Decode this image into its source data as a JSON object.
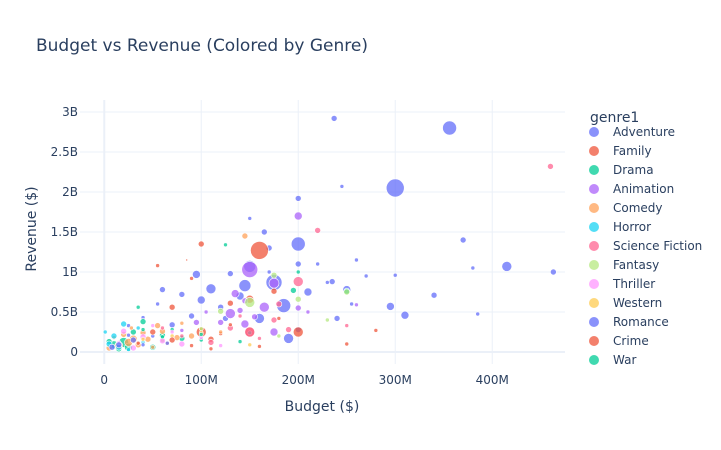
{
  "chart_data": {
    "type": "scatter",
    "title": "Budget vs Revenue (Colored by Genre)",
    "xlabel": "Budget ($)",
    "ylabel": "Revenue ($)",
    "xlim": [
      -25000000,
      475000000
    ],
    "ylim": [
      -150000000,
      3150000000
    ],
    "xticks": [
      {
        "value": 0,
        "label": "0"
      },
      {
        "value": 100000000,
        "label": "100M"
      },
      {
        "value": 200000000,
        "label": "200M"
      },
      {
        "value": 300000000,
        "label": "300M"
      },
      {
        "value": 400000000,
        "label": "400M"
      }
    ],
    "yticks": [
      {
        "value": 0,
        "label": "0"
      },
      {
        "value": 500000000,
        "label": "0.5B"
      },
      {
        "value": 1000000000,
        "label": "1B"
      },
      {
        "value": 1500000000,
        "label": "1.5B"
      },
      {
        "value": 2000000000,
        "label": "2B"
      },
      {
        "value": 2500000000,
        "label": "2.5B"
      },
      {
        "value": 3000000000,
        "label": "3B"
      }
    ],
    "grid": true,
    "legend_title": "genre1",
    "legend_position": "right",
    "marker_opacity": 0.75,
    "series": [
      {
        "name": "Adventure",
        "color": "#636efa",
        "points": [
          [
            356000000,
            2800000000,
            7
          ],
          [
            237000000,
            2920000000,
            3
          ],
          [
            300000000,
            2050000000,
            9
          ],
          [
            200000000,
            1350000000,
            7
          ],
          [
            200000000,
            1920000000,
            3
          ],
          [
            245000000,
            2070000000,
            2
          ],
          [
            260000000,
            1150000000,
            2
          ],
          [
            370000000,
            1400000000,
            3
          ],
          [
            415000000,
            1070000000,
            5
          ],
          [
            463000000,
            1000000000,
            3
          ],
          [
            380000000,
            1050000000,
            2
          ],
          [
            300000000,
            960000000,
            2
          ],
          [
            270000000,
            950000000,
            2
          ],
          [
            340000000,
            710000000,
            3
          ],
          [
            295000000,
            570000000,
            4
          ],
          [
            310000000,
            460000000,
            4
          ],
          [
            385000000,
            475000000,
            2
          ],
          [
            250000000,
            780000000,
            4
          ],
          [
            200000000,
            1100000000,
            3
          ],
          [
            150000000,
            1070000000,
            6
          ],
          [
            170000000,
            1300000000,
            3
          ],
          [
            175000000,
            870000000,
            8
          ],
          [
            185000000,
            580000000,
            7
          ],
          [
            190000000,
            170000000,
            5
          ],
          [
            145000000,
            830000000,
            6
          ],
          [
            130000000,
            980000000,
            3
          ],
          [
            110000000,
            790000000,
            5
          ],
          [
            100000000,
            650000000,
            4
          ],
          [
            95000000,
            970000000,
            4
          ],
          [
            90000000,
            450000000,
            3
          ],
          [
            80000000,
            720000000,
            3
          ],
          [
            70000000,
            340000000,
            3
          ],
          [
            60000000,
            780000000,
            3
          ],
          [
            40000000,
            430000000,
            2
          ],
          [
            25000000,
            330000000,
            2
          ],
          [
            165000000,
            1500000000,
            3
          ],
          [
            150000000,
            1670000000,
            2
          ],
          [
            210000000,
            750000000,
            4
          ],
          [
            240000000,
            420000000,
            3
          ],
          [
            160000000,
            420000000,
            5
          ],
          [
            120000000,
            560000000,
            3
          ],
          [
            200000000,
            280000000,
            3
          ],
          [
            230000000,
            870000000,
            2
          ],
          [
            235000000,
            880000000,
            3
          ],
          [
            220000000,
            1100000000,
            2
          ],
          [
            255000000,
            600000000,
            2
          ],
          [
            140000000,
            700000000,
            4
          ],
          [
            170000000,
            1000000000,
            2
          ],
          [
            125000000,
            420000000,
            3
          ],
          [
            55000000,
            600000000,
            2
          ]
        ]
      },
      {
        "name": "Family",
        "color": "#ef553b",
        "points": [
          [
            160000000,
            1270000000,
            9
          ],
          [
            100000000,
            1350000000,
            3
          ],
          [
            55000000,
            1080000000,
            2
          ],
          [
            175000000,
            760000000,
            3
          ],
          [
            150000000,
            660000000,
            4
          ],
          [
            200000000,
            250000000,
            5
          ],
          [
            150000000,
            250000000,
            5
          ],
          [
            100000000,
            250000000,
            5
          ],
          [
            130000000,
            610000000,
            3
          ],
          [
            70000000,
            560000000,
            3
          ],
          [
            110000000,
            160000000,
            3
          ],
          [
            85000000,
            1150000000,
            1
          ],
          [
            160000000,
            70000000,
            2
          ],
          [
            90000000,
            920000000,
            2
          ],
          [
            120000000,
            230000000,
            2
          ],
          [
            60000000,
            150000000,
            2
          ],
          [
            280000000,
            270000000,
            2
          ],
          [
            250000000,
            100000000,
            2
          ],
          [
            180000000,
            420000000,
            2
          ],
          [
            40000000,
            220000000,
            2
          ]
        ]
      },
      {
        "name": "Drama",
        "color": "#00cc96",
        "points": [
          [
            200000000,
            1000000000,
            2
          ],
          [
            195000000,
            770000000,
            3
          ],
          [
            250000000,
            760000000,
            3
          ],
          [
            125000000,
            1340000000,
            2
          ],
          [
            40000000,
            380000000,
            3
          ],
          [
            20000000,
            120000000,
            5
          ],
          [
            30000000,
            250000000,
            3
          ],
          [
            10000000,
            90000000,
            4
          ],
          [
            50000000,
            60000000,
            3
          ],
          [
            80000000,
            170000000,
            3
          ],
          [
            60000000,
            210000000,
            3
          ],
          [
            15000000,
            40000000,
            3
          ],
          [
            35000000,
            560000000,
            2
          ],
          [
            70000000,
            280000000,
            2
          ],
          [
            100000000,
            150000000,
            2
          ],
          [
            150000000,
            240000000,
            2
          ],
          [
            5000000,
            130000000,
            3
          ],
          [
            25000000,
            60000000,
            4
          ]
        ]
      },
      {
        "name": "Animation",
        "color": "#ab63fa",
        "points": [
          [
            200000000,
            1700000000,
            4
          ],
          [
            150000000,
            1030000000,
            8
          ],
          [
            175000000,
            860000000,
            5
          ],
          [
            165000000,
            560000000,
            5
          ],
          [
            260000000,
            590000000,
            2
          ],
          [
            130000000,
            480000000,
            5
          ],
          [
            145000000,
            350000000,
            4
          ],
          [
            135000000,
            730000000,
            4
          ],
          [
            140000000,
            520000000,
            3
          ],
          [
            95000000,
            370000000,
            3
          ],
          [
            120000000,
            370000000,
            3
          ],
          [
            175000000,
            250000000,
            4
          ],
          [
            200000000,
            550000000,
            3
          ],
          [
            155000000,
            440000000,
            3
          ],
          [
            210000000,
            500000000,
            2
          ],
          [
            145000000,
            640000000,
            3
          ],
          [
            80000000,
            270000000,
            2
          ],
          [
            105000000,
            500000000,
            2
          ]
        ]
      },
      {
        "name": "Comedy",
        "color": "#ffa15a",
        "points": [
          [
            145000000,
            1450000000,
            3
          ],
          [
            30000000,
            160000000,
            4
          ],
          [
            25000000,
            120000000,
            4
          ],
          [
            40000000,
            240000000,
            3
          ],
          [
            60000000,
            260000000,
            3
          ],
          [
            15000000,
            80000000,
            4
          ],
          [
            75000000,
            180000000,
            3
          ],
          [
            55000000,
            330000000,
            3
          ],
          [
            90000000,
            200000000,
            3
          ],
          [
            5000000,
            50000000,
            3
          ],
          [
            35000000,
            90000000,
            3
          ],
          [
            45000000,
            160000000,
            3
          ],
          [
            20000000,
            220000000,
            3
          ],
          [
            65000000,
            110000000,
            2
          ],
          [
            80000000,
            360000000,
            2
          ],
          [
            100000000,
            290000000,
            2
          ],
          [
            10000000,
            180000000,
            2
          ],
          [
            28000000,
            300000000,
            2
          ],
          [
            50000000,
            60000000,
            2
          ],
          [
            120000000,
            250000000,
            2
          ]
        ]
      },
      {
        "name": "Horror",
        "color": "#19d3f3",
        "points": [
          [
            20000000,
            350000000,
            3
          ],
          [
            5000000,
            100000000,
            3
          ],
          [
            10000000,
            200000000,
            3
          ],
          [
            15000000,
            60000000,
            3
          ],
          [
            35000000,
            300000000,
            2
          ],
          [
            40000000,
            120000000,
            2
          ],
          [
            1000000,
            250000000,
            2
          ],
          [
            25000000,
            30000000,
            2
          ]
        ]
      },
      {
        "name": "Science Fiction",
        "color": "#ff6692",
        "points": [
          [
            460000000,
            2320000000,
            3
          ],
          [
            150000000,
            250000000,
            5
          ],
          [
            175000000,
            400000000,
            3
          ],
          [
            200000000,
            880000000,
            5
          ],
          [
            220000000,
            1520000000,
            3
          ],
          [
            180000000,
            600000000,
            3
          ],
          [
            190000000,
            280000000,
            3
          ],
          [
            130000000,
            300000000,
            3
          ],
          [
            250000000,
            330000000,
            2
          ],
          [
            110000000,
            120000000,
            3
          ],
          [
            80000000,
            200000000,
            2
          ],
          [
            60000000,
            300000000,
            2
          ],
          [
            160000000,
            170000000,
            2
          ],
          [
            140000000,
            450000000,
            2
          ]
        ]
      },
      {
        "name": "Fantasy",
        "color": "#b6e880",
        "points": [
          [
            200000000,
            660000000,
            3
          ],
          [
            150000000,
            620000000,
            5
          ],
          [
            250000000,
            750000000,
            3
          ],
          [
            175000000,
            960000000,
            3
          ],
          [
            120000000,
            510000000,
            3
          ],
          [
            100000000,
            290000000,
            2
          ],
          [
            180000000,
            200000000,
            2
          ],
          [
            230000000,
            400000000,
            2
          ],
          [
            60000000,
            140000000,
            2
          ]
        ]
      },
      {
        "name": "Thriller",
        "color": "#ff97ff",
        "points": [
          [
            20000000,
            260000000,
            3
          ],
          [
            40000000,
            190000000,
            3
          ],
          [
            60000000,
            140000000,
            3
          ],
          [
            80000000,
            100000000,
            3
          ],
          [
            30000000,
            50000000,
            3
          ],
          [
            50000000,
            330000000,
            2
          ],
          [
            70000000,
            250000000,
            2
          ],
          [
            100000000,
            180000000,
            2
          ],
          [
            15000000,
            120000000,
            2
          ],
          [
            120000000,
            80000000,
            2
          ]
        ]
      },
      {
        "name": "Western",
        "color": "#fecb52",
        "points": [
          [
            100000000,
            240000000,
            2
          ],
          [
            40000000,
            160000000,
            2
          ],
          [
            150000000,
            90000000,
            2
          ],
          [
            70000000,
            200000000,
            2
          ]
        ]
      },
      {
        "name": "Romance",
        "color": "#636efa",
        "points": [
          [
            15000000,
            90000000,
            3
          ],
          [
            30000000,
            150000000,
            3
          ],
          [
            40000000,
            90000000,
            2
          ],
          [
            50000000,
            200000000,
            2
          ],
          [
            65000000,
            110000000,
            2
          ],
          [
            25000000,
            210000000,
            2
          ],
          [
            8000000,
            60000000,
            3
          ]
        ]
      },
      {
        "name": "Crime",
        "color": "#ef553b",
        "points": [
          [
            50000000,
            250000000,
            3
          ],
          [
            70000000,
            150000000,
            3
          ],
          [
            90000000,
            80000000,
            2
          ],
          [
            35000000,
            110000000,
            2
          ],
          [
            130000000,
            340000000,
            2
          ],
          [
            110000000,
            40000000,
            2
          ]
        ]
      },
      {
        "name": "War",
        "color": "#00cc96",
        "points": [
          [
            60000000,
            190000000,
            2
          ],
          [
            100000000,
            220000000,
            2
          ],
          [
            40000000,
            280000000,
            2
          ],
          [
            140000000,
            130000000,
            2
          ]
        ]
      }
    ]
  }
}
